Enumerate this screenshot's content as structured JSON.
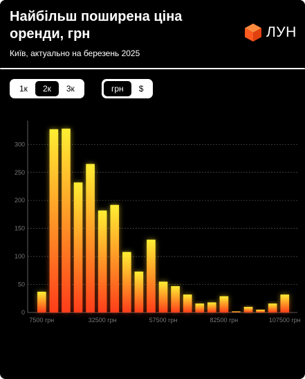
{
  "header": {
    "title": "Найбільш поширена ціна оренди, грн",
    "subtitle": "Київ, актуально на березень 2025",
    "brand": "ЛУН",
    "brand_color": "#ff5a1f"
  },
  "controls": {
    "step_options": [
      "1к",
      "2к",
      "3к"
    ],
    "step_selected": "2к",
    "currency_options": [
      "грн",
      "$"
    ],
    "currency_selected": "грн"
  },
  "chart_data": {
    "type": "bar",
    "title": "",
    "xlabel": "",
    "ylabel": "",
    "ylim": [
      0,
      335
    ],
    "yticks": [
      0,
      50,
      100,
      150,
      200,
      250,
      300
    ],
    "x_tick_labels": [
      "7500 грн",
      "32500 грн",
      "57500 грн",
      "82500 грн",
      "107500 грн"
    ],
    "x_tick_values": [
      7500,
      32500,
      57500,
      82500,
      107500
    ],
    "x": [
      7500,
      12500,
      17500,
      22500,
      27500,
      32500,
      37500,
      42500,
      47500,
      52500,
      57500,
      62500,
      67500,
      72500,
      77500,
      82500,
      87500,
      92500,
      97500,
      102500,
      107500,
      112500
    ],
    "values": [
      37,
      327,
      328,
      232,
      265,
      182,
      192,
      108,
      73,
      130,
      55,
      47,
      32,
      16,
      18,
      29,
      2,
      10,
      5,
      16,
      32,
      0
    ],
    "gradient": [
      "#ffee33",
      "#ff3d1a"
    ],
    "grid": true
  }
}
